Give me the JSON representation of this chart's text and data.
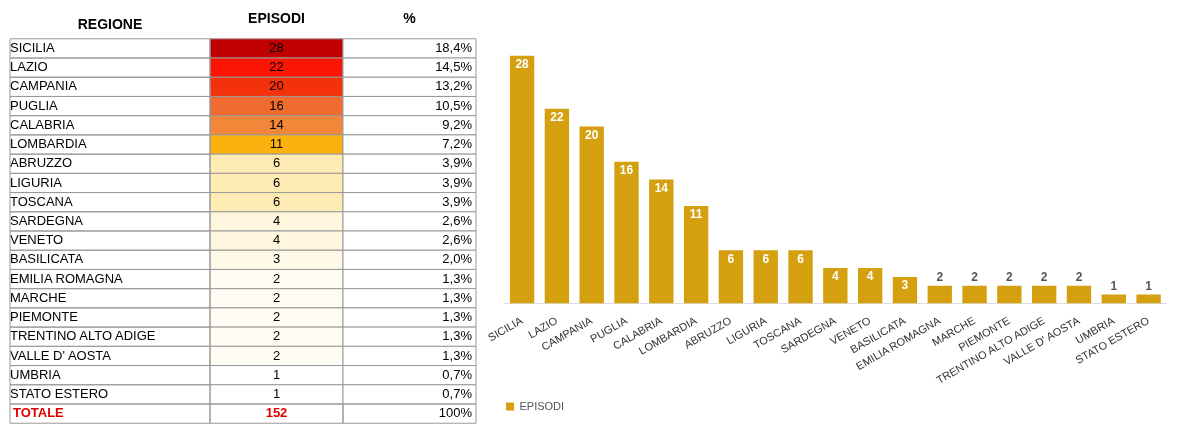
{
  "chart_data": [
    {
      "type": "heatmap",
      "ylabel": "REGIONE",
      "categories": [
        "EPISODI",
        "%"
      ],
      "y_categories": [
        "SICILIA",
        "LAZIO",
        "CAMPANIA",
        "PUGLIA",
        "CALABRIA",
        "LOMBARDIA",
        "ABRUZZO",
        "LIGURIA",
        "TOSCANA",
        "SARDEGNA",
        "VENETO",
        "BASILICATA",
        "EMILIA ROMAGNA",
        "MARCHE",
        "PIEMONTE",
        "TRENTINO ALTO ADIGE",
        "VALLE D' AOSTA",
        "UMBRIA",
        "STATO ESTERO"
      ],
      "cells": [
        [
          28,
          18.4
        ],
        [
          22,
          14.5
        ],
        [
          20,
          13.2
        ],
        [
          16,
          10.5
        ],
        [
          14,
          9.2
        ],
        [
          11,
          7.2
        ],
        [
          6,
          3.9
        ],
        [
          6,
          3.9
        ],
        [
          6,
          3.9
        ],
        [
          4,
          2.6
        ],
        [
          4,
          2.6
        ],
        [
          3,
          2.0
        ],
        [
          2,
          1.3
        ],
        [
          2,
          1.3
        ],
        [
          2,
          1.3
        ],
        [
          2,
          1.3
        ],
        [
          2,
          1.3
        ],
        [
          1,
          0.7
        ],
        [
          1,
          0.7
        ]
      ],
      "cell_labels": [
        [
          "28",
          "18,4%"
        ],
        [
          "22",
          "14,5%"
        ],
        [
          "20",
          "13,2%"
        ],
        [
          "16",
          "10,5%"
        ],
        [
          "14",
          "9,2%"
        ],
        [
          "11",
          "7,2%"
        ],
        [
          "6",
          "3,9%"
        ],
        [
          "6",
          "3,9%"
        ],
        [
          "6",
          "3,9%"
        ],
        [
          "4",
          "2,6%"
        ],
        [
          "4",
          "2,6%"
        ],
        [
          "3",
          "2,0%"
        ],
        [
          "2",
          "1,3%"
        ],
        [
          "2",
          "1,3%"
        ],
        [
          "2",
          "1,3%"
        ],
        [
          "2",
          "1,3%"
        ],
        [
          "2",
          "1,3%"
        ],
        [
          "1",
          "0,7%"
        ],
        [
          "1",
          "0,7%"
        ]
      ],
      "colors": [
        [
          "#ffffff",
          "#fff2cc",
          "#ffc000",
          "#f08040",
          "#f0400f",
          "#ff0000",
          "#c00000"
        ],
        [
          "#ffffff"
        ]
      ],
      "annotations": [
        "TOTALE",
        "152",
        "100%"
      ]
    },
    {
      "type": "bar",
      "categories": [
        "SICILIA",
        "LAZIO",
        "CAMPANIA",
        "PUGLIA",
        "CALABRIA",
        "LOMBARDIA",
        "ABRUZZO",
        "LIGURIA",
        "TOSCANA",
        "SARDEGNA",
        "VENETO",
        "BASILICATA",
        "EMILIA ROMAGNA",
        "MARCHE",
        "PIEMONTE",
        "TRENTINO ALTO ADIGE",
        "VALLE D' AOSTA",
        "UMBRIA",
        "STATO ESTERO"
      ],
      "series": [
        {
          "name": "EPISODI",
          "color": "#d4a010",
          "values": [
            28,
            22,
            20,
            16,
            14,
            11,
            6,
            6,
            6,
            4,
            4,
            3,
            2,
            2,
            2,
            2,
            2,
            1,
            1
          ]
        }
      ],
      "data_labels": true,
      "tick_labels": "x",
      "legend": "bottom left",
      "grid": false
    }
  ]
}
